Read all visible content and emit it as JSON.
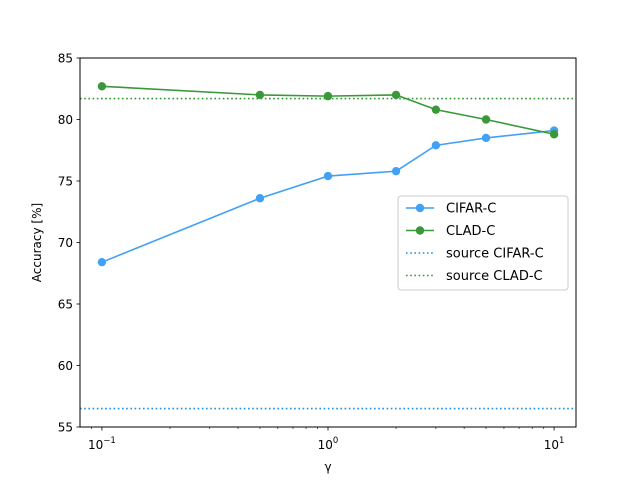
{
  "chart_data": {
    "type": "line",
    "title": "",
    "xlabel": "γ",
    "ylabel": "Accuracy [%]",
    "xscale": "log",
    "xlim": [
      0.08,
      12.5
    ],
    "ylim": [
      55,
      85
    ],
    "x": [
      0.1,
      0.5,
      1,
      2,
      3,
      5,
      10
    ],
    "x_tick_labels": [
      {
        "value": 0.1,
        "base": "10",
        "exp": "−1"
      },
      {
        "value": 1,
        "base": "10",
        "exp": "0"
      },
      {
        "value": 10,
        "base": "10",
        "exp": "1"
      }
    ],
    "y_ticks": [
      55,
      60,
      65,
      70,
      75,
      80,
      85
    ],
    "grid": false,
    "legend_position": "center-right",
    "series": [
      {
        "name": "CIFAR-C",
        "color": "#42a1f5",
        "style": "solid",
        "marker": "circle",
        "values": [
          68.4,
          73.6,
          75.4,
          75.8,
          77.9,
          78.5,
          79.1
        ]
      },
      {
        "name": "CLAD-C",
        "color": "#3a983a",
        "style": "solid",
        "marker": "circle",
        "values": [
          82.7,
          82.0,
          81.9,
          82.0,
          80.8,
          80.0,
          78.8
        ]
      },
      {
        "name": "source CIFAR-C",
        "color": "#1f8fe6",
        "style": "dotted",
        "constant": 56.5
      },
      {
        "name": "source CLAD-C",
        "color": "#2b9a2b",
        "style": "dotted",
        "constant": 81.7
      }
    ]
  }
}
